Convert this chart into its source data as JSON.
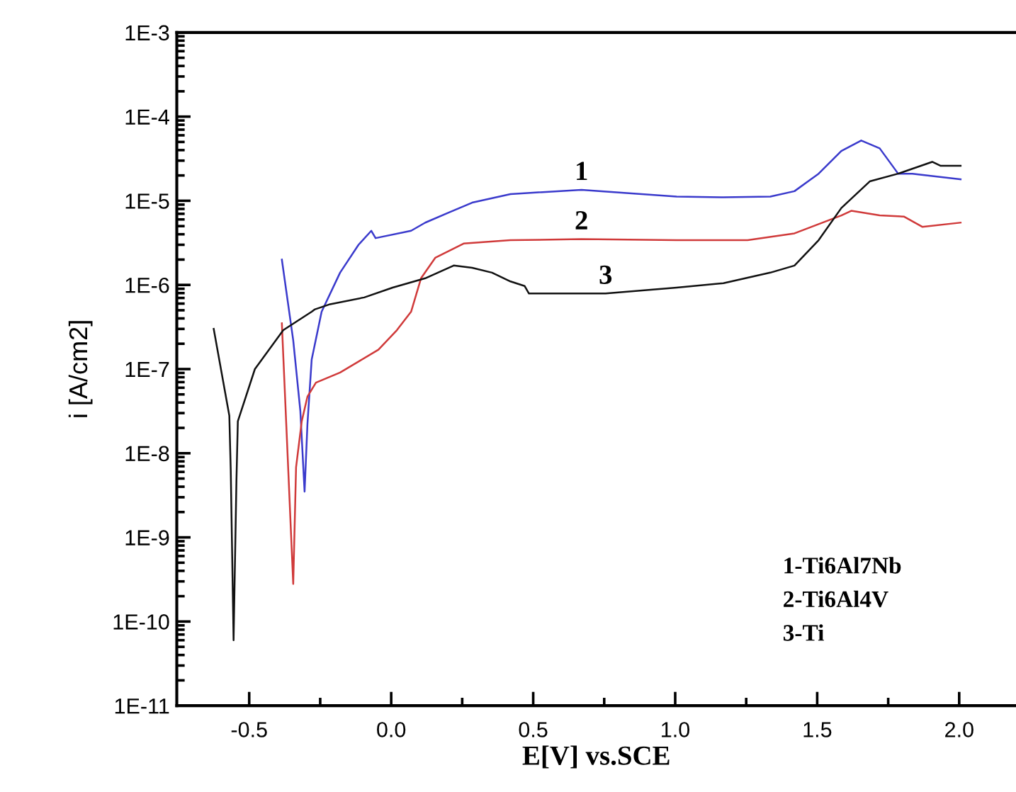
{
  "chart_data": {
    "type": "line",
    "xlabel": "E[V] vs.SCE",
    "ylabel": "i [A/cm2]",
    "log": "y",
    "grid": false,
    "legend": false,
    "marker": "none",
    "line_style": "solid",
    "xlim": [
      -0.755,
      2.2
    ],
    "xticks": [
      {
        "value": -0.5,
        "label": "-0.5"
      },
      {
        "value": -0.25,
        "label": null
      },
      {
        "value": 0,
        "label": "0.0"
      },
      {
        "value": 0.25,
        "label": null
      },
      {
        "value": 0.5,
        "label": "0.5"
      },
      {
        "value": 0.75,
        "label": null
      },
      {
        "value": 1,
        "label": "1.0"
      },
      {
        "value": 1.25,
        "label": null
      },
      {
        "value": 1.5,
        "label": "1.5"
      },
      {
        "value": 1.75,
        "label": null
      },
      {
        "value": 2,
        "label": "2.0"
      }
    ],
    "ylim": [
      1e-11,
      0.001
    ],
    "yticks": [
      {
        "value": 1e-11,
        "label": "1E-11"
      },
      {
        "value": 1e-10,
        "label": "1E-10"
      },
      {
        "value": 1e-09,
        "label": "1E-9"
      },
      {
        "value": 1e-08,
        "label": "1E-8"
      },
      {
        "value": 1e-07,
        "label": "1E-7"
      },
      {
        "value": 1e-06,
        "label": "1E-6"
      },
      {
        "value": 1e-05,
        "label": "1E-5"
      },
      {
        "value": 0.0001,
        "label": "1E-4"
      },
      {
        "value": 0.001,
        "label": "1E-3"
      }
    ],
    "series": [
      {
        "name": "1",
        "color": "#3a3acc",
        "x": [
          -0.385,
          -0.345,
          -0.32,
          -0.305,
          -0.295,
          -0.28,
          -0.245,
          -0.18,
          -0.115,
          -0.07,
          -0.055,
          0.07,
          0.12,
          0.205,
          0.285,
          0.42,
          0.67,
          1.005,
          1.17,
          1.335,
          1.42,
          1.505,
          1.585,
          1.655,
          1.72,
          1.785,
          1.835,
          2.005
        ],
        "values": [
          2e-06,
          2.2e-07,
          3.2e-08,
          3.5e-09,
          2.2e-08,
          1.3e-07,
          4.8e-07,
          1.4e-06,
          3e-06,
          4.4e-06,
          3.6e-06,
          4.4e-06,
          5.5e-06,
          7.3e-06,
          9.5e-06,
          1.2e-05,
          1.35e-05,
          1.12e-05,
          1.1e-05,
          1.12e-05,
          1.3e-05,
          2.1e-05,
          3.9e-05,
          5.2e-05,
          4.2e-05,
          2.1e-05,
          2.1e-05,
          1.8e-05
        ]
      },
      {
        "name": "2",
        "color": "#d03a3a",
        "x": [
          -0.385,
          -0.345,
          -0.335,
          -0.315,
          -0.295,
          -0.265,
          -0.18,
          -0.045,
          0.02,
          0.07,
          0.105,
          0.155,
          0.255,
          0.42,
          0.67,
          1.005,
          1.255,
          1.42,
          1.585,
          1.62,
          1.72,
          1.805,
          1.87,
          2.005
        ],
        "values": [
          3.5e-07,
          2.8e-10,
          6.8e-09,
          2.4e-08,
          4.7e-08,
          6.9e-08,
          9.1e-08,
          1.7e-07,
          2.9e-07,
          4.8e-07,
          1.2e-06,
          2.1e-06,
          3.1e-06,
          3.4e-06,
          3.5e-06,
          3.4e-06,
          3.4e-06,
          4.1e-06,
          6.7e-06,
          7.6e-06,
          6.7e-06,
          6.5e-06,
          4.9e-06,
          5.5e-06
        ]
      },
      {
        "name": "3",
        "color": "#111111",
        "x": [
          -0.625,
          -0.57,
          -0.565,
          -0.555,
          -0.545,
          -0.54,
          -0.48,
          -0.38,
          -0.28,
          -0.27,
          -0.215,
          -0.095,
          0.005,
          0.12,
          0.22,
          0.285,
          0.355,
          0.42,
          0.47,
          0.485,
          0.755,
          1.005,
          1.17,
          1.335,
          1.42,
          1.505,
          1.585,
          1.685,
          1.785,
          1.905,
          1.935,
          2.005
        ],
        "values": [
          3e-07,
          2.8e-08,
          6.3e-09,
          6e-11,
          4.6e-09,
          2.4e-08,
          1e-07,
          2.9e-07,
          4.8e-07,
          5.1e-07,
          5.9e-07,
          7.1e-07,
          9.3e-07,
          1.2e-06,
          1.7e-06,
          1.6e-06,
          1.4e-06,
          1.1e-06,
          9.7e-07,
          7.9e-07,
          7.9e-07,
          9.3e-07,
          1.05e-06,
          1.4e-06,
          1.7e-06,
          3.4e-06,
          8.2e-06,
          1.7e-05,
          2.1e-05,
          2.9e-05,
          2.6e-05,
          2.6e-05
        ]
      }
    ],
    "annotations": [
      "1-Ti6Al7Nb",
      "2-Ti6Al4V",
      "3-Ti"
    ]
  }
}
